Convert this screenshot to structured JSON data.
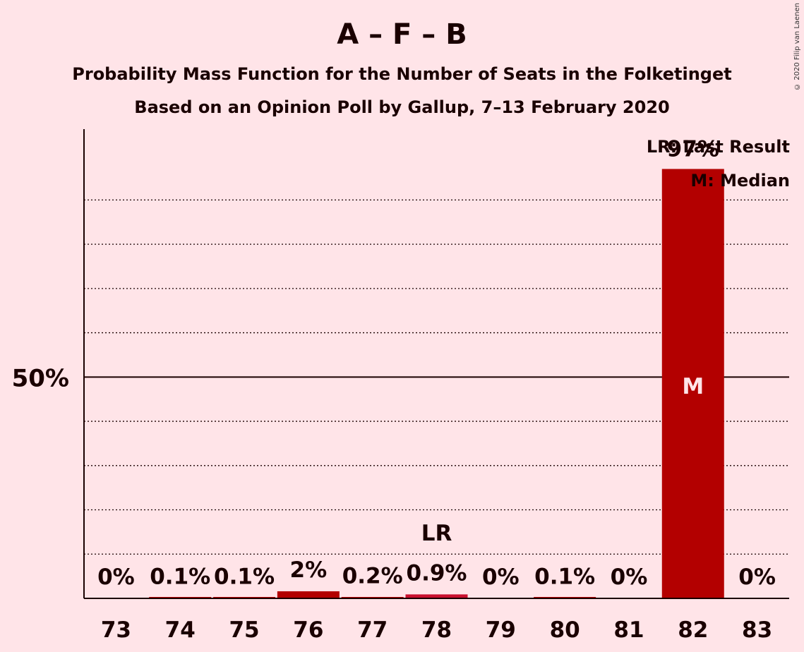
{
  "chart_data": {
    "type": "bar",
    "title": "A – F – B",
    "subtitle": "Probability Mass Function for the Number of Seats in the Folketinget",
    "subtitle2": "Based on an Opinion Poll by Gallup, 7–13 February 2020",
    "categories": [
      "73",
      "74",
      "75",
      "76",
      "77",
      "78",
      "79",
      "80",
      "81",
      "82",
      "83"
    ],
    "values": [
      0,
      0.1,
      0.1,
      1.6,
      0.2,
      0.9,
      0,
      0.1,
      0,
      97,
      0
    ],
    "value_labels": [
      "0%",
      "0.1%",
      "0.1%",
      "2%",
      "0.2%",
      "0.9%",
      "0%",
      "0.1%",
      "0%",
      "97%",
      "0%"
    ],
    "ylim": [
      0,
      106
    ],
    "y_tick_label": "50%",
    "y_tick_value": 50,
    "gridlines": [
      10,
      20,
      30,
      40,
      60,
      70,
      80,
      90
    ],
    "last_result_category": "78",
    "last_result_marker": "LR",
    "median_category": "82",
    "median_marker": "M",
    "bar_color": "#b30000",
    "last_result_bar_color": "#c8102e",
    "legend": [
      "LR: Last Result",
      "M: Median"
    ],
    "legend_position": "top-right"
  },
  "copyright": "© 2020 Filip van Laenen"
}
